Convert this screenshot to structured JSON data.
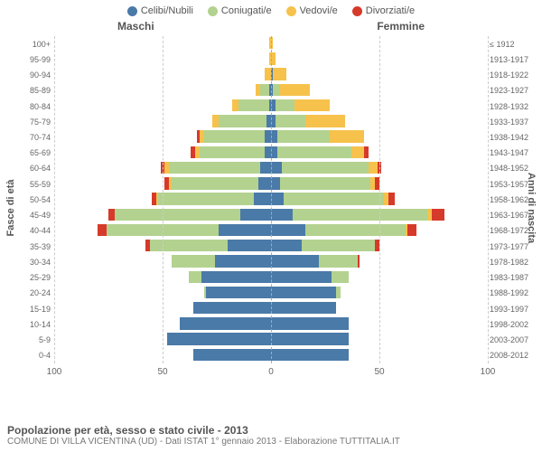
{
  "legend": [
    {
      "label": "Celibi/Nubili",
      "color": "#4a7aa8"
    },
    {
      "label": "Coniugati/e",
      "color": "#b3d28f"
    },
    {
      "label": "Vedovi/e",
      "color": "#f6c24c"
    },
    {
      "label": "Divorziati/e",
      "color": "#d63a2a"
    }
  ],
  "side_left": "Maschi",
  "side_right": "Femmine",
  "yaxis_left": "Fasce di età",
  "yaxis_right": "Anni di nascita",
  "xmax": 100,
  "xticks": [
    100,
    50,
    0,
    50,
    100
  ],
  "grid_positions": [
    0,
    25,
    50,
    75,
    100
  ],
  "grid_color": "#cccccc",
  "title": "Popolazione per età, sesso e stato civile - 2013",
  "subtitle": "COMUNE DI VILLA VICENTINA (UD) - Dati ISTAT 1° gennaio 2013 - Elaborazione TUTTITALIA.IT",
  "rows": [
    {
      "age": "100+",
      "year": "≤ 1912",
      "m": [
        0,
        0,
        1,
        0
      ],
      "f": [
        0,
        0,
        1,
        0
      ]
    },
    {
      "age": "95-99",
      "year": "1913-1917",
      "m": [
        0,
        0,
        1,
        0
      ],
      "f": [
        0,
        0,
        2,
        0
      ]
    },
    {
      "age": "90-94",
      "year": "1918-1922",
      "m": [
        0,
        0,
        3,
        0
      ],
      "f": [
        1,
        0,
        6,
        0
      ]
    },
    {
      "age": "85-89",
      "year": "1923-1927",
      "m": [
        1,
        4,
        2,
        0
      ],
      "f": [
        1,
        3,
        14,
        0
      ]
    },
    {
      "age": "80-84",
      "year": "1928-1932",
      "m": [
        1,
        14,
        3,
        0
      ],
      "f": [
        2,
        9,
        16,
        0
      ]
    },
    {
      "age": "75-79",
      "year": "1933-1937",
      "m": [
        2,
        22,
        3,
        0
      ],
      "f": [
        2,
        14,
        18,
        0
      ]
    },
    {
      "age": "70-74",
      "year": "1938-1942",
      "m": [
        3,
        28,
        2,
        1
      ],
      "f": [
        3,
        24,
        16,
        0
      ]
    },
    {
      "age": "65-69",
      "year": "1943-1947",
      "m": [
        3,
        30,
        2,
        2
      ],
      "f": [
        3,
        34,
        6,
        2
      ]
    },
    {
      "age": "60-64",
      "year": "1948-1952",
      "m": [
        5,
        42,
        2,
        2
      ],
      "f": [
        5,
        40,
        4,
        2
      ]
    },
    {
      "age": "55-59",
      "year": "1953-1957",
      "m": [
        6,
        40,
        1,
        2
      ],
      "f": [
        4,
        42,
        2,
        2
      ]
    },
    {
      "age": "50-54",
      "year": "1958-1962",
      "m": [
        8,
        44,
        1,
        2
      ],
      "f": [
        6,
        46,
        2,
        3
      ]
    },
    {
      "age": "45-49",
      "year": "1963-1967",
      "m": [
        14,
        58,
        0,
        3
      ],
      "f": [
        10,
        62,
        2,
        6
      ]
    },
    {
      "age": "40-44",
      "year": "1968-1972",
      "m": [
        24,
        52,
        0,
        4
      ],
      "f": [
        16,
        46,
        1,
        4
      ]
    },
    {
      "age": "35-39",
      "year": "1973-1977",
      "m": [
        20,
        36,
        0,
        2
      ],
      "f": [
        14,
        34,
        0,
        2
      ]
    },
    {
      "age": "30-34",
      "year": "1978-1982",
      "m": [
        26,
        20,
        0,
        0
      ],
      "f": [
        22,
        18,
        0,
        1
      ]
    },
    {
      "age": "25-29",
      "year": "1983-1987",
      "m": [
        32,
        6,
        0,
        0
      ],
      "f": [
        28,
        8,
        0,
        0
      ]
    },
    {
      "age": "20-24",
      "year": "1988-1992",
      "m": [
        30,
        1,
        0,
        0
      ],
      "f": [
        30,
        2,
        0,
        0
      ]
    },
    {
      "age": "15-19",
      "year": "1993-1997",
      "m": [
        36,
        0,
        0,
        0
      ],
      "f": [
        30,
        0,
        0,
        0
      ]
    },
    {
      "age": "10-14",
      "year": "1998-2002",
      "m": [
        42,
        0,
        0,
        0
      ],
      "f": [
        36,
        0,
        0,
        0
      ]
    },
    {
      "age": "5-9",
      "year": "2003-2007",
      "m": [
        48,
        0,
        0,
        0
      ],
      "f": [
        36,
        0,
        0,
        0
      ]
    },
    {
      "age": "0-4",
      "year": "2008-2012",
      "m": [
        36,
        0,
        0,
        0
      ],
      "f": [
        36,
        0,
        0,
        0
      ]
    }
  ]
}
